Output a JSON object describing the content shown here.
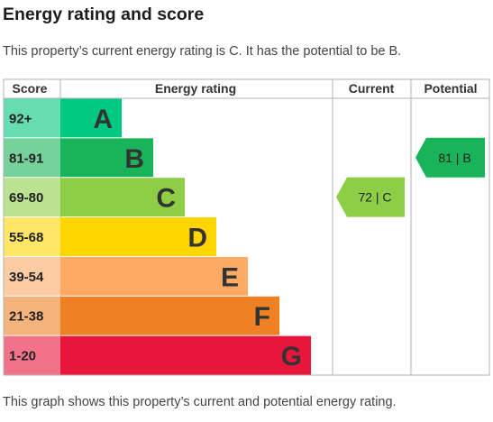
{
  "title": "Energy rating and score",
  "subtitle": "This property’s current energy rating is C. It has the potential to be B.",
  "footnote": "This graph shows this property’s current and potential energy rating.",
  "table_headers": {
    "score": "Score",
    "energy_rating": "Energy rating",
    "current": "Current",
    "potential": "Potential"
  },
  "chart_data": {
    "type": "bar",
    "categories": [
      "A",
      "B",
      "C",
      "D",
      "E",
      "F",
      "G"
    ],
    "score_ranges": [
      "92+",
      "81-91",
      "69-80",
      "55-68",
      "39-54",
      "21-38",
      "1-20"
    ],
    "colors": [
      "#00c781",
      "#19b459",
      "#8dce46",
      "#ffd500",
      "#fcaa65",
      "#ef8023",
      "#e9153b"
    ],
    "range_colors": [
      "#66dcb3",
      "#75d29b",
      "#bbe291",
      "#ffe666",
      "#fdcca3",
      "#f5b37b",
      "#f27389"
    ],
    "current": {
      "band": "C",
      "score": 72,
      "label": "72 | C",
      "color": "#8dce46"
    },
    "potential": {
      "band": "B",
      "score": 81,
      "label": "81 | B",
      "color": "#19b459"
    }
  }
}
